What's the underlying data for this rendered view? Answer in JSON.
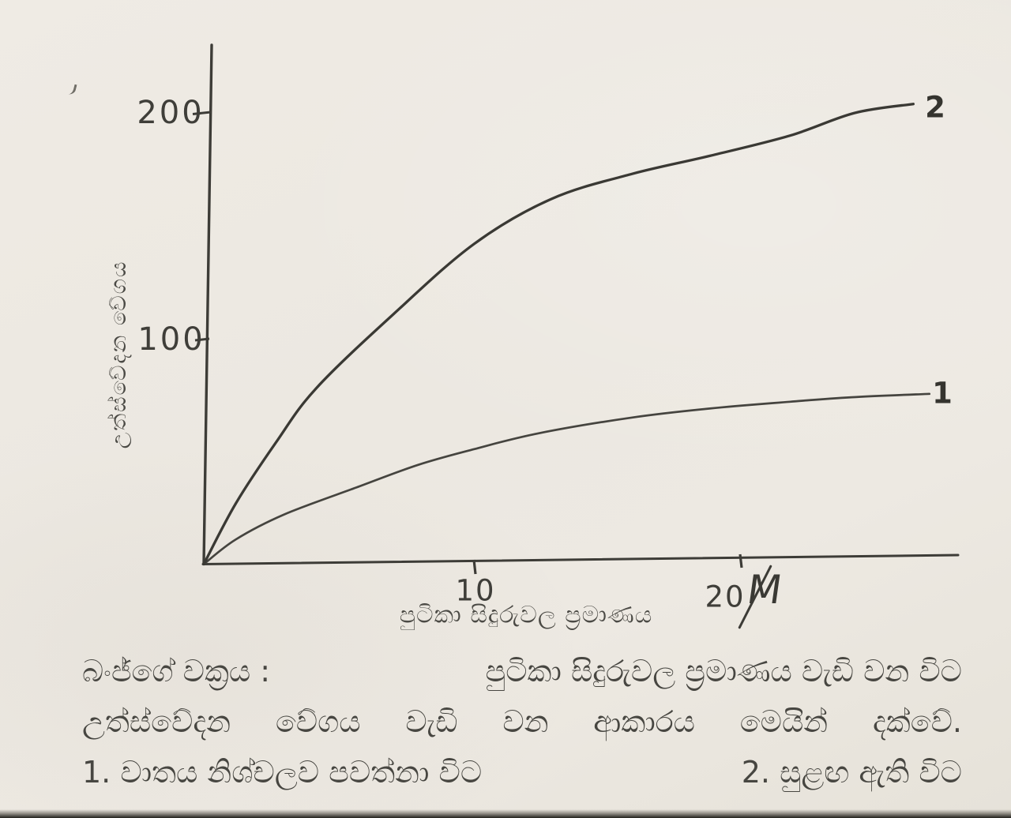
{
  "chart_data": {
    "type": "line",
    "title": "",
    "xlabel": "පුටිකා සිදුරුවල ප්‍රමාණය",
    "ylabel": "උත්ස්වේදන වේගය",
    "xlim": [
      0,
      27.5
    ],
    "ylim": [
      0,
      230
    ],
    "grid": false,
    "legend_position": "end-of-curve",
    "x_ticks": [
      {
        "value": 10,
        "label": "10",
        "num": "10",
        "suffix": ""
      },
      {
        "value": 20,
        "label": "20µ",
        "num": "20",
        "suffix": "M"
      }
    ],
    "y_ticks": [
      {
        "value": 100,
        "label": "100"
      },
      {
        "value": 200,
        "label": "200"
      }
    ],
    "series": [
      {
        "name": "curve-1",
        "label": "1",
        "description": "වාතය නිශ්චලව පවත්නා විට",
        "points": [
          [
            0,
            0
          ],
          [
            1.2,
            11
          ],
          [
            3,
            22
          ],
          [
            5.7,
            34
          ],
          [
            8,
            44
          ],
          [
            10.1,
            51
          ],
          [
            12.5,
            58
          ],
          [
            16,
            65
          ],
          [
            18.9,
            69
          ],
          [
            21.9,
            72
          ],
          [
            24.2,
            74
          ],
          [
            27.1,
            75.5
          ]
        ]
      },
      {
        "name": "curve-2",
        "label": "2",
        "description": "සුළඟ ඇති විට",
        "points": [
          [
            0,
            0
          ],
          [
            1.2,
            27
          ],
          [
            2.7,
            54
          ],
          [
            4.2,
            78
          ],
          [
            7.1,
            111
          ],
          [
            10.1,
            142
          ],
          [
            13,
            162
          ],
          [
            16,
            173
          ],
          [
            18.9,
            181
          ],
          [
            21.9,
            190
          ],
          [
            24.3,
            200
          ],
          [
            26.5,
            204
          ]
        ]
      }
    ]
  },
  "caption": {
    "line1_lead": "බංජ්ගේ වක්‍රය :",
    "line1_rest": "පුටිකා සිදුරුවල ප්‍රමාණය වැඩි වන විට",
    "line2": "උත්ස්වේදන වේගය වැඩි වන ආකාරය මෙයින් දක්වේ.",
    "line3_item1": "1.  වාතය නිශ්චලව පවත්නා විට",
    "line3_item2": "2.  සුළඟ ඇති විට"
  },
  "ink_color": "#3d3c37",
  "paper_color": "#ebe7e0"
}
